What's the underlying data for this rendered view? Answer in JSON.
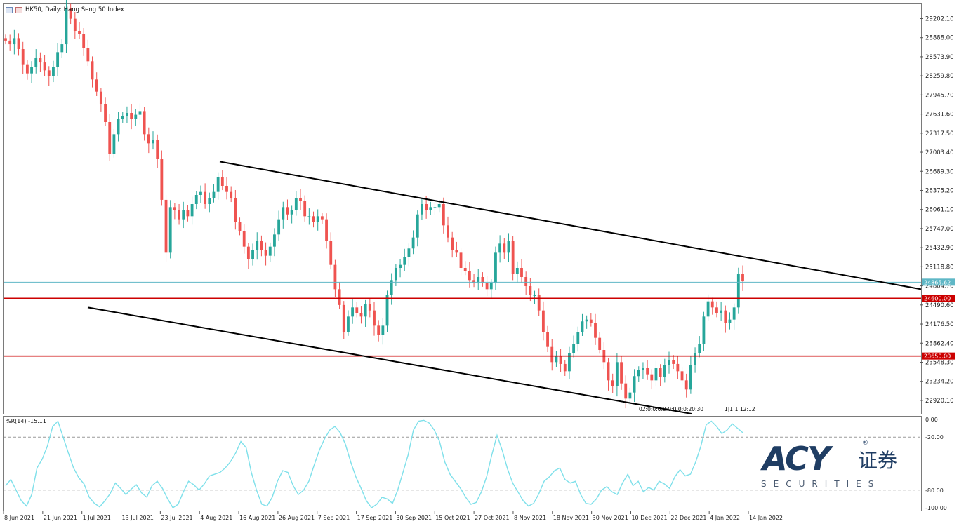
{
  "window": {
    "title": "HK50, Daily: Hang Seng 50 Index"
  },
  "colors": {
    "bull": "#26a69a",
    "bear": "#ef5350",
    "trendline": "#000000",
    "level_line": "#cc0000",
    "current_price_line": "#5fb7c6",
    "oscillator": "#7fe0ea",
    "grid_dash": "#9a9a9a",
    "axis_text": "#222222"
  },
  "price_axis": {
    "ticks": [
      "29202.10",
      "28888.00",
      "28573.90",
      "28259.80",
      "27945.70",
      "27631.60",
      "27317.50",
      "27003.40",
      "26689.30",
      "26375.20",
      "26061.10",
      "25747.00",
      "25432.90",
      "25118.80",
      "24804.70",
      "24490.60",
      "24176.50",
      "23862.40",
      "23548.30",
      "23234.20",
      "22920.10"
    ],
    "current_price_label": "24865.62",
    "level_labels": [
      "24600.00",
      "23650.00"
    ]
  },
  "date_axis": {
    "labels": [
      "8 Jun 2021",
      "21 Jun 2021",
      "1 Jul 2021",
      "13 Jul 2021",
      "23 Jul 2021",
      "4 Aug 2021",
      "16 Aug 2021",
      "26 Aug 2021",
      "7 Sep 2021",
      "17 Sep 2021",
      "30 Sep 2021",
      "15 Oct 2021",
      "27 Oct 2021",
      "8 Nov 2021",
      "18 Nov 2021",
      "30 Nov 2021",
      "10 Dec 2021",
      "22 Dec 2021",
      "4 Jan 2022",
      "14 Jan 2022"
    ]
  },
  "event_markers": {
    "group1": "02:0:0:0:0:0:0:0:0:20:30",
    "group2": "1|1|1|12:12"
  },
  "oscillator": {
    "title": "%R(14) -15.11",
    "axis_ticks": [
      "0.00",
      "-20.00",
      "-80.00",
      "-100.00"
    ]
  },
  "logo": {
    "main": "ACY",
    "chinese": "证券",
    "sub": "SECURITIES",
    "registered": "®"
  },
  "chart_data": {
    "type": "candlestick",
    "title": "HK50, Daily: Hang Seng 50 Index",
    "x_range": [
      "8 Jun 2021",
      "20 Jan 2022"
    ],
    "y_range": [
      22700,
      29450
    ],
    "candles_close": [
      28840,
      28780,
      28880,
      28700,
      28450,
      28300,
      28400,
      28560,
      28480,
      28350,
      28250,
      28400,
      28650,
      28780,
      29380,
      29200,
      29000,
      28950,
      28720,
      28500,
      28200,
      28000,
      27800,
      27500,
      26980,
      27300,
      27550,
      27600,
      27650,
      27550,
      27620,
      27680,
      27300,
      27150,
      27200,
      26900,
      26220,
      25350,
      26100,
      26050,
      25900,
      26050,
      25950,
      26150,
      26300,
      26350,
      26150,
      26250,
      26350,
      26600,
      26450,
      26350,
      26250,
      25850,
      25700,
      25450,
      25250,
      25400,
      25550,
      25400,
      25300,
      25450,
      25650,
      25900,
      26100,
      25980,
      26050,
      26250,
      26200,
      25950,
      25950,
      25850,
      25950,
      25900,
      25550,
      25150,
      24750,
      24490,
      24050,
      24300,
      24450,
      24350,
      24300,
      24500,
      24400,
      24150,
      24000,
      24150,
      24650,
      24900,
      25100,
      25150,
      25280,
      25420,
      25600,
      25980,
      26150,
      26050,
      26100,
      26100,
      26150,
      25800,
      25600,
      25400,
      25350,
      25100,
      25050,
      24900,
      24850,
      24950,
      24850,
      24750,
      24850,
      25350,
      25500,
      25350,
      25550,
      25000,
      25100,
      24950,
      24800,
      24650,
      24650,
      24400,
      24050,
      23800,
      23550,
      23650,
      23520,
      23400,
      23700,
      23850,
      24050,
      24220,
      24250,
      24200,
      23950,
      23750,
      23550,
      23250,
      23150,
      23550,
      23200,
      22950,
      23050,
      23320,
      23420,
      23450,
      23350,
      23250,
      23450,
      23300,
      23500,
      23580,
      23520,
      23400,
      23250,
      23100,
      23500,
      23700,
      23850,
      24300,
      24550,
      24450,
      24350,
      24400,
      24200,
      24250,
      24450,
      25000,
      24880
    ],
    "current_price": 24865.62,
    "horizontal_levels": [
      24600.0,
      23650.0
    ],
    "trendlines": [
      {
        "name": "upper",
        "from": [
          "27 Jul 2021",
          26850
        ],
        "to": [
          "31 Jan 2022",
          24750
        ]
      },
      {
        "name": "lower",
        "from": [
          "10 Jul 2021",
          24450
        ],
        "to": [
          "4 Jan 2022",
          22700
        ]
      }
    ],
    "oscillator": {
      "name": "%R(14)",
      "last": -15.11,
      "ylim": [
        -100,
        0
      ],
      "levels": [
        -20,
        -80
      ],
      "values": [
        -75,
        -68,
        -80,
        -92,
        -98,
        -85,
        -55,
        -45,
        -30,
        -8,
        -2,
        -20,
        -38,
        -55,
        -66,
        -73,
        -88,
        -95,
        -99,
        -92,
        -84,
        -72,
        -78,
        -85,
        -79,
        -74,
        -83,
        -88,
        -75,
        -70,
        -78,
        -90,
        -100,
        -96,
        -82,
        -70,
        -74,
        -80,
        -73,
        -64,
        -62,
        -60,
        -55,
        -48,
        -38,
        -25,
        -32,
        -60,
        -80,
        -96,
        -98,
        -88,
        -70,
        -58,
        -60,
        -75,
        -85,
        -80,
        -70,
        -52,
        -35,
        -22,
        -12,
        -8,
        -15,
        -28,
        -48,
        -65,
        -78,
        -92,
        -100,
        -96,
        -88,
        -90,
        -95,
        -80,
        -60,
        -40,
        -12,
        -2,
        -1,
        -4,
        -12,
        -25,
        -48,
        -62,
        -70,
        -78,
        -88,
        -96,
        -94,
        -82,
        -65,
        -40,
        -18,
        -35,
        -56,
        -72,
        -82,
        -92,
        -98,
        -95,
        -84,
        -70,
        -65,
        -58,
        -55,
        -68,
        -72,
        -70,
        -85,
        -95,
        -96,
        -90,
        -80,
        -76,
        -82,
        -85,
        -72,
        -62,
        -75,
        -70,
        -82,
        -77,
        -80,
        -70,
        -73,
        -78,
        -65,
        -57,
        -64,
        -62,
        -48,
        -30,
        -6,
        -2,
        -8,
        -16,
        -12,
        -5,
        -10,
        -15
      ]
    }
  }
}
